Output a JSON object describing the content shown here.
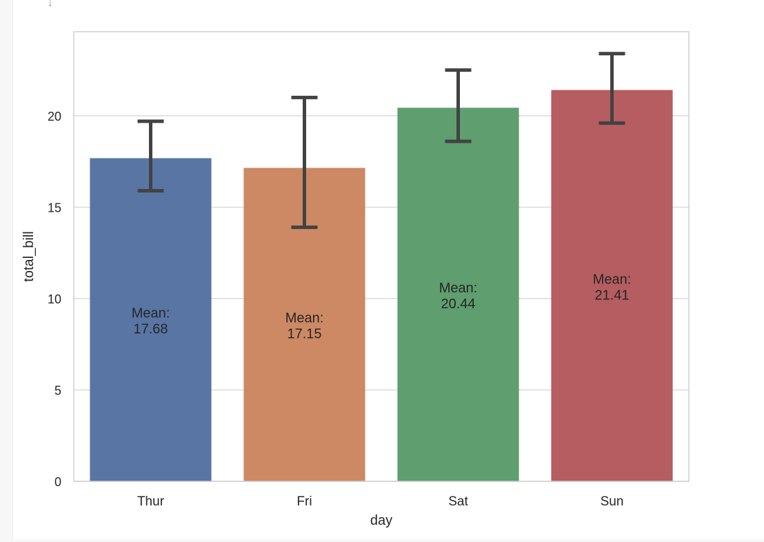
{
  "chart_data": {
    "type": "bar",
    "categories": [
      "Thur",
      "Fri",
      "Sat",
      "Sun"
    ],
    "values": [
      17.68,
      17.15,
      20.44,
      21.41
    ],
    "error_bars": [
      {
        "low": 15.9,
        "high": 19.7
      },
      {
        "low": 13.9,
        "high": 21.0
      },
      {
        "low": 18.6,
        "high": 22.5
      },
      {
        "low": 19.6,
        "high": 23.4
      }
    ],
    "bar_labels": [
      {
        "line1": "Mean:",
        "line2": "17.68"
      },
      {
        "line1": "Mean:",
        "line2": "17.15"
      },
      {
        "line1": "Mean:",
        "line2": "20.44"
      },
      {
        "line1": "Mean:",
        "line2": "21.41"
      }
    ],
    "colors": [
      "#5975a4",
      "#cc8963",
      "#5f9e6e",
      "#b55d60"
    ],
    "error_bar_color": "#424242",
    "xlabel": "day",
    "ylabel": "total_bill",
    "ylim": [
      0,
      24.6
    ],
    "yticks": [
      0,
      5,
      10,
      15,
      20
    ],
    "ytick_labels": [
      "0",
      "5",
      "10",
      "15",
      "20"
    ],
    "grid": "horizontal",
    "legend": "none"
  }
}
